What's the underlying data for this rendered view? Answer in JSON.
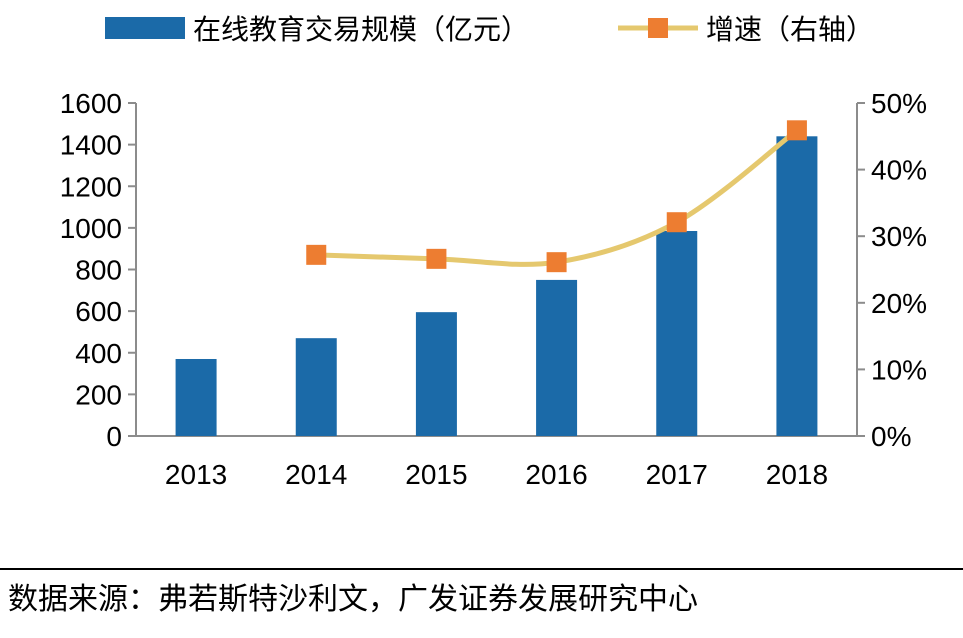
{
  "chart_data": {
    "type": "bar+line",
    "categories": [
      "2013",
      "2014",
      "2015",
      "2016",
      "2017",
      "2018"
    ],
    "series": [
      {
        "name": "在线教育交易规模（亿元）",
        "type": "bar",
        "axis": "left",
        "color": "#1b6aa8",
        "values": [
          370,
          470,
          595,
          750,
          985,
          1440
        ]
      },
      {
        "name": "增速（右轴）",
        "type": "line",
        "axis": "right",
        "line_color": "#e5c86e",
        "marker_color": "#ed7d31",
        "values": [
          null,
          0.272,
          0.266,
          0.261,
          0.321,
          0.459
        ]
      }
    ],
    "y_left": {
      "min": 0,
      "max": 1600,
      "ticks": [
        0,
        200,
        400,
        600,
        800,
        1000,
        1200,
        1400,
        1600
      ]
    },
    "y_right": {
      "min": 0,
      "max": 0.5,
      "ticks": [
        "0%",
        "10%",
        "20%",
        "30%",
        "40%",
        "50%"
      ]
    },
    "legend_position": "top",
    "grid": false
  },
  "source_text": "数据来源：弗若斯特沙利文，广发证券发展研究中心"
}
